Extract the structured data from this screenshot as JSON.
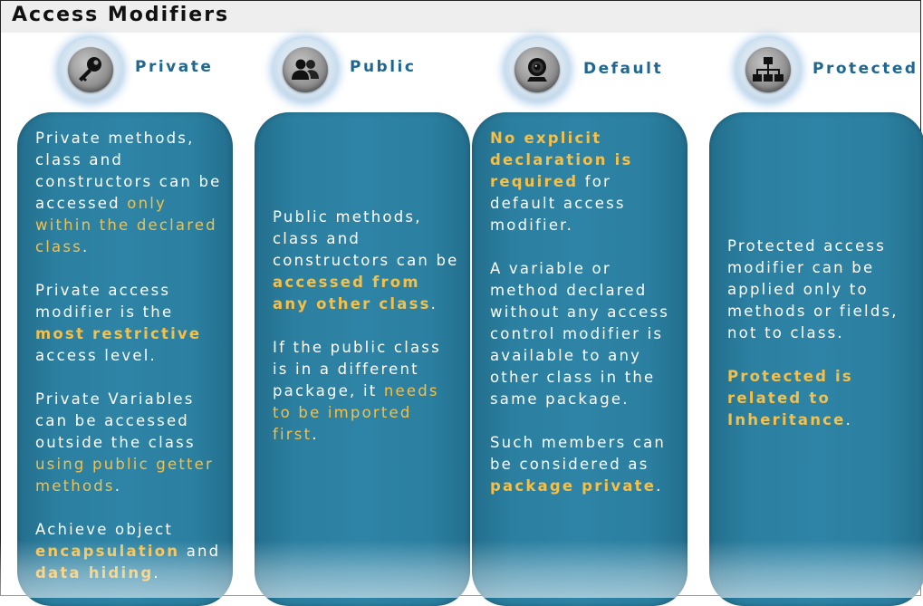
{
  "title": "Access Modifiers",
  "columns": [
    {
      "label": "Private",
      "icon": "key-icon",
      "p1": {
        "t1": "Private methods, class and constructors can be accessed ",
        "h1": "only within the declared class",
        "t2": "."
      },
      "p2": {
        "t1": "Private access modifier is the ",
        "h1": "most restrictive",
        "t2": " access level."
      },
      "p3": {
        "t1": "Private Variables can be accessed outside the class ",
        "h1": "using public getter methods",
        "t2": "."
      },
      "p4": {
        "t1": "Achieve object ",
        "h1": "encapsulation",
        "t2": " and ",
        "h2": "data hiding",
        "t3": "."
      }
    },
    {
      "label": "Public",
      "icon": "users-icon",
      "p1": {
        "t1": "Public methods, class and constructors can be ",
        "h1": "accessed from any other class",
        "t2": "."
      },
      "p2": {
        "t1": "If the public class is in a different package, it ",
        "h1": "needs to be imported first",
        "t2": "."
      }
    },
    {
      "label": "Default",
      "icon": "webcam-icon",
      "p1": {
        "h1": "No explicit declaration is required",
        "t1": " for default access modifier."
      },
      "p2": {
        "t1": "A variable or method declared without any access control modifier is available to any other class in the same package."
      },
      "p3": {
        "t1": "Such members can be considered as ",
        "h1": "package private",
        "t2": "."
      }
    },
    {
      "label": "Protected",
      "icon": "hierarchy-icon",
      "p1": {
        "t1": "Protected access modifier can be applied only to methods or fields, not to class."
      },
      "p2": {
        "h1": "Protected is related to Inheritance",
        "t1": "."
      }
    }
  ]
}
